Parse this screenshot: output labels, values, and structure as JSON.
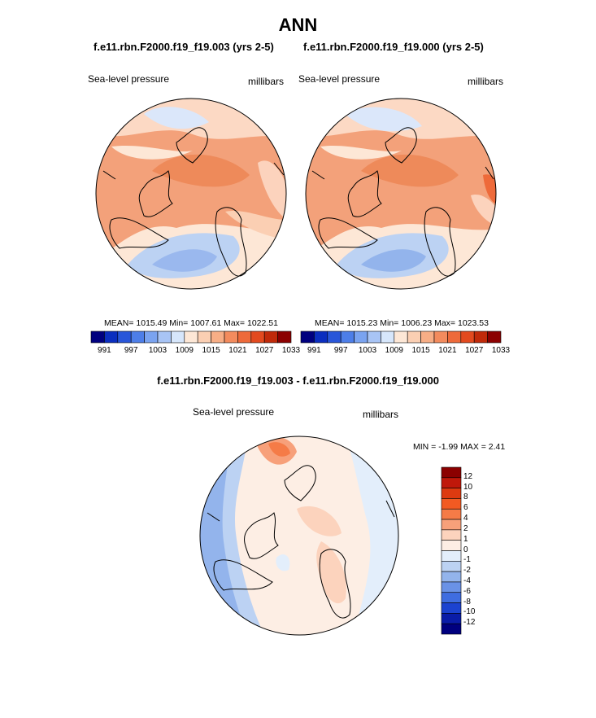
{
  "main_title": "ANN",
  "panels": [
    {
      "case_title": "f.e11.rbn.F2000.f19_f19.003 (yrs 2-5)",
      "variable": "Sea-level pressure",
      "units": "millibars",
      "stats": {
        "mean": "1015.49",
        "min": "1007.61",
        "max": "1022.51"
      },
      "stats_text": "MEAN= 1015.49  Min= 1007.61  Max= 1022.51"
    },
    {
      "case_title": "f.e11.rbn.F2000.f19_f19.000 (yrs 2-5)",
      "variable": "Sea-level pressure",
      "units": "millibars",
      "stats": {
        "mean": "1015.23",
        "min": "1006.23",
        "max": "1023.53"
      },
      "stats_text": "MEAN= 1015.23  Min= 1006.23  Max= 1023.53"
    }
  ],
  "abs_colorbar": {
    "tick_labels": [
      "991",
      "997",
      "1003",
      "1009",
      "1015",
      "1021",
      "1027",
      "1033"
    ],
    "colors": [
      "#00007f",
      "#0b2ebf",
      "#2956d9",
      "#4d7ee8",
      "#7aa3f0",
      "#a8c4f5",
      "#d6e6fb",
      "#fde7d6",
      "#fbcfb3",
      "#f7ae86",
      "#f38b5d",
      "#ee6a3a",
      "#e24a1f",
      "#c02a0a",
      "#8b0000"
    ]
  },
  "difference_panel": {
    "title": "f.e11.rbn.F2000.f19_f19.003 - f.e11.rbn.F2000.f19_f19.000",
    "variable": "Sea-level pressure",
    "units": "millibars",
    "min_max_text": "MIN =  -1.99 MAX =   2.41",
    "colorbar": {
      "tick_labels": [
        "12",
        "10",
        "8",
        "6",
        "4",
        "2",
        "1",
        "0",
        "-1",
        "-2",
        "-4",
        "-6",
        "-8",
        "-10",
        "-12"
      ],
      "colors": [
        "#8b0000",
        "#c0180a",
        "#dd3a10",
        "#f25a22",
        "#f57b47",
        "#f7a07a",
        "#fcd3bd",
        "#fdeee4",
        "#e3eefb",
        "#bcd2f3",
        "#93b4ec",
        "#6a92e6",
        "#3f6de0",
        "#1c43d0",
        "#0a1ca8",
        "#00007f"
      ]
    }
  }
}
